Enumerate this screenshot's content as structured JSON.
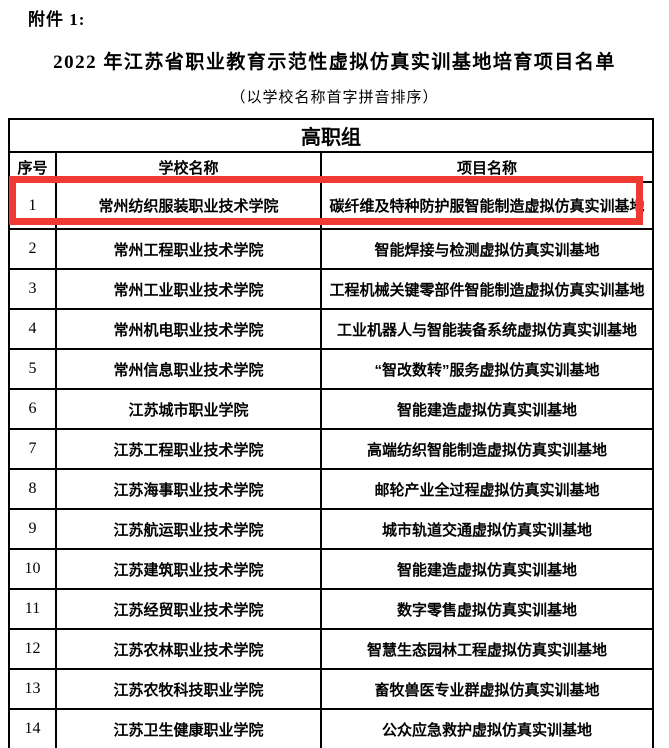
{
  "page": {
    "attachment_label": "附件 1:",
    "title": "2022 年江苏省职业教育示范性虚拟仿真实训基地培育项目名单",
    "subtitle": "（以学校名称首字拼音排序）"
  },
  "table": {
    "group_header": "高职组",
    "columns": [
      "序号",
      "学校名称",
      "项目名称"
    ],
    "highlight_color": "#EF3A34",
    "highlighted_row_index": 0,
    "rows": [
      {
        "no": "1",
        "school": "常州纺织服装职业技术学院",
        "project": "碳纤维及特种防护服智能制造虚拟仿真实训基地"
      },
      {
        "no": "2",
        "school": "常州工程职业技术学院",
        "project": "智能焊接与检测虚拟仿真实训基地"
      },
      {
        "no": "3",
        "school": "常州工业职业技术学院",
        "project": "工程机械关键零部件智能制造虚拟仿真实训基地"
      },
      {
        "no": "4",
        "school": "常州机电职业技术学院",
        "project": "工业机器人与智能装备系统虚拟仿真实训基地"
      },
      {
        "no": "5",
        "school": "常州信息职业技术学院",
        "project": "“智改数转”服务虚拟仿真实训基地"
      },
      {
        "no": "6",
        "school": "江苏城市职业学院",
        "project": "智能建造虚拟仿真实训基地"
      },
      {
        "no": "7",
        "school": "江苏工程职业技术学院",
        "project": "高端纺织智能制造虚拟仿真实训基地"
      },
      {
        "no": "8",
        "school": "江苏海事职业技术学院",
        "project": "邮轮产业全过程虚拟仿真实训基地"
      },
      {
        "no": "9",
        "school": "江苏航运职业技术学院",
        "project": "城市轨道交通虚拟仿真实训基地"
      },
      {
        "no": "10",
        "school": "江苏建筑职业技术学院",
        "project": "智能建造虚拟仿真实训基地"
      },
      {
        "no": "11",
        "school": "江苏经贸职业技术学院",
        "project": "数字零售虚拟仿真实训基地"
      },
      {
        "no": "12",
        "school": "江苏农林职业技术学院",
        "project": "智慧生态园林工程虚拟仿真实训基地"
      },
      {
        "no": "13",
        "school": "江苏农牧科技职业学院",
        "project": "畜牧兽医专业群虚拟仿真实训基地"
      },
      {
        "no": "14",
        "school": "江苏卫生健康职业学院",
        "project": "公众应急救护虚拟仿真实训基地"
      }
    ]
  }
}
